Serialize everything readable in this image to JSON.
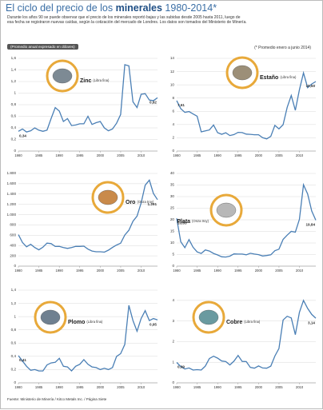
{
  "header": {
    "title_prefix": "El ciclo del precio de los ",
    "title_bold": "minerales",
    "title_suffix": " 1980-2014*",
    "description": "Durante los años 90 se puede observar que el precio de los minerales reportó bajas y las subidas desde 2005 hasta 2011, luego de esa fecha se registraron nuevas caídas, según la cotización del mercado de Londres. Los datos son tomados del Ministerio de Minería.",
    "note_left": "(Promedio anual expresado en dólares)",
    "note_right": "(* Promedio enero a junio 2014)"
  },
  "source": "Fuente: Ministerio de Minería / Kitco Metals Inc. / Página Siete",
  "chart_data": [
    {
      "type": "line",
      "name": "Zinc",
      "unit": "(Libra fina)",
      "color": "#4a7fb5",
      "x": [
        1980,
        1981,
        1982,
        1983,
        1984,
        1985,
        1986,
        1987,
        1988,
        1989,
        1990,
        1991,
        1992,
        1993,
        1994,
        1995,
        1996,
        1997,
        1998,
        1999,
        2000,
        2001,
        2002,
        2003,
        2004,
        2005,
        2006,
        2007,
        2008,
        2009,
        2010,
        2011,
        2012,
        2013,
        2014
      ],
      "values": [
        0.34,
        0.38,
        0.33,
        0.35,
        0.4,
        0.36,
        0.34,
        0.36,
        0.56,
        0.75,
        0.69,
        0.51,
        0.56,
        0.44,
        0.45,
        0.47,
        0.47,
        0.6,
        0.46,
        0.49,
        0.51,
        0.4,
        0.35,
        0.38,
        0.48,
        0.63,
        1.49,
        1.47,
        0.85,
        0.75,
        0.98,
        0.99,
        0.88,
        0.87,
        0.92
      ],
      "value_labels": [
        "0,34",
        null,
        null,
        null,
        null,
        null,
        null,
        null,
        null,
        null,
        null,
        null,
        null,
        null,
        null,
        null,
        null,
        null,
        null,
        null,
        null,
        null,
        null,
        null,
        null,
        null,
        null,
        null,
        null,
        null,
        null,
        null,
        null,
        null,
        "0,92"
      ],
      "xlim": [
        1980,
        2014
      ],
      "xticks": [
        1980,
        1985,
        1990,
        1995,
        2000,
        2005,
        2010
      ],
      "ylim": [
        0,
        1.6
      ],
      "yticks": [
        0,
        {
          "value": 0.2,
          "label": "0,2"
        },
        {
          "value": 0.4,
          "label": "0,4"
        },
        {
          "value": 0.6,
          "label": "0,6"
        },
        {
          "value": 0.8,
          "label": "0,8"
        },
        1,
        {
          "value": 1.2,
          "label": "1,2"
        },
        {
          "value": 1.4,
          "label": "1,4"
        },
        {
          "value": 1.6,
          "label": "1,6"
        }
      ],
      "grid": true
    },
    {
      "type": "line",
      "name": "Estaño",
      "unit": "(Libra fina)",
      "color": "#4a7fb5",
      "x": [
        1980,
        1981,
        1982,
        1983,
        1984,
        1985,
        1986,
        1987,
        1988,
        1989,
        1990,
        1991,
        1992,
        1993,
        1994,
        1995,
        1996,
        1997,
        1998,
        1999,
        2000,
        2001,
        2002,
        2003,
        2004,
        2005,
        2006,
        2007,
        2008,
        2009,
        2010,
        2011,
        2012,
        2013,
        2014
      ],
      "values": [
        7.61,
        6.4,
        5.84,
        5.96,
        5.6,
        5.26,
        2.9,
        3.04,
        3.19,
        3.93,
        2.77,
        2.53,
        2.76,
        2.34,
        2.49,
        2.82,
        2.79,
        2.56,
        2.52,
        2.46,
        2.46,
        2.02,
        1.84,
        2.22,
        3.87,
        3.35,
        3.98,
        6.6,
        8.39,
        6.15,
        9.26,
        11.8,
        9.57,
        10.12,
        10.5
      ],
      "value_labels": [
        "7,61",
        null,
        null,
        null,
        null,
        null,
        null,
        null,
        null,
        null,
        null,
        null,
        null,
        null,
        null,
        null,
        null,
        null,
        null,
        null,
        null,
        null,
        null,
        null,
        null,
        null,
        null,
        null,
        null,
        null,
        null,
        null,
        null,
        null,
        "10,50"
      ],
      "xlim": [
        1980,
        2014
      ],
      "xticks": [
        1980,
        1985,
        1990,
        1995,
        2000,
        2005,
        2010
      ],
      "ylim": [
        0,
        14
      ],
      "yticks": [
        0,
        2,
        4,
        6,
        8,
        10,
        12,
        14
      ],
      "grid": true
    },
    {
      "type": "line",
      "name": "Oro",
      "unit": "(Onza troy)",
      "color": "#4a7fb5",
      "x": [
        1980,
        1981,
        1982,
        1983,
        1984,
        1985,
        1986,
        1987,
        1988,
        1989,
        1990,
        1991,
        1992,
        1993,
        1994,
        1995,
        1996,
        1997,
        1998,
        1999,
        2000,
        2001,
        2002,
        2003,
        2004,
        2005,
        2006,
        2007,
        2008,
        2009,
        2010,
        2011,
        2012,
        2013,
        2014
      ],
      "values": [
        612,
        460,
        376,
        424,
        361,
        317,
        368,
        447,
        437,
        381,
        383,
        362,
        344,
        360,
        384,
        384,
        388,
        331,
        294,
        279,
        279,
        271,
        310,
        363,
        409,
        445,
        604,
        697,
        872,
        972,
        1225,
        1572,
        1669,
        1411,
        1291
      ],
      "value_labels": [
        null,
        null,
        null,
        null,
        null,
        null,
        null,
        null,
        null,
        null,
        null,
        null,
        null,
        null,
        null,
        null,
        null,
        null,
        null,
        null,
        null,
        null,
        null,
        null,
        null,
        null,
        null,
        null,
        null,
        null,
        null,
        null,
        null,
        null,
        "1.291"
      ],
      "xlim": [
        1980,
        2014
      ],
      "xticks": [
        1980,
        1985,
        1990,
        1995,
        2000,
        2005,
        2010
      ],
      "ylim": [
        0,
        1800
      ],
      "yticks": [
        0,
        200,
        400,
        600,
        800,
        {
          "value": 1000,
          "label": "1.000"
        },
        {
          "value": 1200,
          "label": "1.200"
        },
        {
          "value": 1400,
          "label": "1.400"
        },
        {
          "value": 1600,
          "label": "1.600"
        },
        {
          "value": 1800,
          "label": "1.800"
        }
      ],
      "grid": true
    },
    {
      "type": "line",
      "name": "Plata",
      "unit": "(Onza troy)",
      "color": "#4a7fb5",
      "x": [
        1980,
        1981,
        1982,
        1983,
        1984,
        1985,
        1986,
        1987,
        1988,
        1989,
        1990,
        1991,
        1992,
        1993,
        1994,
        1995,
        1996,
        1997,
        1998,
        1999,
        2000,
        2001,
        2002,
        2003,
        2004,
        2005,
        2006,
        2007,
        2008,
        2009,
        2010,
        2011,
        2012,
        2013,
        2014
      ],
      "values": [
        20.63,
        10.52,
        7.95,
        11.44,
        8.14,
        6.14,
        5.47,
        7.01,
        6.53,
        5.5,
        4.82,
        4.04,
        3.94,
        4.3,
        5.29,
        5.2,
        5.2,
        4.9,
        5.54,
        5.22,
        4.95,
        4.37,
        4.6,
        4.88,
        6.67,
        7.32,
        11.55,
        13.38,
        15.0,
        14.67,
        20.19,
        35.12,
        31.15,
        23.79,
        19.84
      ],
      "value_labels": [
        "20,63",
        null,
        null,
        null,
        null,
        null,
        null,
        null,
        null,
        null,
        null,
        null,
        null,
        null,
        null,
        null,
        null,
        null,
        null,
        null,
        null,
        null,
        null,
        null,
        null,
        null,
        null,
        null,
        null,
        null,
        null,
        null,
        null,
        null,
        "19,84"
      ],
      "xlim": [
        1980,
        2014
      ],
      "xticks": [
        1980,
        1985,
        1990,
        1995,
        2000,
        2005,
        2010
      ],
      "ylim": [
        0,
        40
      ],
      "yticks": [
        0,
        5,
        10,
        15,
        20,
        25,
        30,
        35,
        40
      ],
      "grid": true
    },
    {
      "type": "line",
      "name": "Plomo",
      "unit": "(Libra fina)",
      "color": "#4a7fb5",
      "x": [
        1980,
        1981,
        1982,
        1983,
        1984,
        1985,
        1986,
        1987,
        1988,
        1989,
        1990,
        1991,
        1992,
        1993,
        1994,
        1995,
        1996,
        1997,
        1998,
        1999,
        2000,
        2001,
        2002,
        2003,
        2004,
        2005,
        2006,
        2007,
        2008,
        2009,
        2010,
        2011,
        2012,
        2013,
        2014
      ],
      "values": [
        0.41,
        0.33,
        0.25,
        0.19,
        0.2,
        0.18,
        0.18,
        0.27,
        0.3,
        0.31,
        0.37,
        0.25,
        0.24,
        0.18,
        0.25,
        0.28,
        0.35,
        0.28,
        0.24,
        0.23,
        0.2,
        0.22,
        0.2,
        0.23,
        0.4,
        0.44,
        0.58,
        1.17,
        0.94,
        0.78,
        0.97,
        1.09,
        0.94,
        0.97,
        0.95
      ],
      "value_labels": [
        "0,41",
        null,
        null,
        null,
        null,
        null,
        null,
        null,
        null,
        null,
        null,
        null,
        null,
        null,
        null,
        null,
        null,
        null,
        null,
        null,
        null,
        null,
        null,
        null,
        null,
        null,
        null,
        null,
        null,
        null,
        null,
        null,
        null,
        null,
        "0,95"
      ],
      "xlim": [
        1980,
        2014
      ],
      "xticks": [
        1980,
        1985,
        1990,
        1995,
        2000,
        2005,
        2010
      ],
      "ylim": [
        0,
        1.4
      ],
      "yticks": [
        0,
        {
          "value": 0.2,
          "label": "0,2"
        },
        {
          "value": 0.4,
          "label": "0,4"
        },
        {
          "value": 0.6,
          "label": "0,6"
        },
        {
          "value": 0.8,
          "label": "0,8"
        },
        1,
        {
          "value": 1.2,
          "label": "1,2"
        },
        {
          "value": 1.4,
          "label": "1,4"
        }
      ],
      "grid": true
    },
    {
      "type": "line",
      "name": "Cobre",
      "unit": "(Libra fina)",
      "color": "#4a7fb5",
      "x": [
        1980,
        1981,
        1982,
        1983,
        1984,
        1985,
        1986,
        1987,
        1988,
        1989,
        1990,
        1991,
        1992,
        1993,
        1994,
        1995,
        1996,
        1997,
        1998,
        1999,
        2000,
        2001,
        2002,
        2003,
        2004,
        2005,
        2006,
        2007,
        2008,
        2009,
        2010,
        2011,
        2012,
        2013,
        2014
      ],
      "values": [
        0.99,
        0.79,
        0.67,
        0.72,
        0.62,
        0.64,
        0.62,
        0.81,
        1.18,
        1.29,
        1.2,
        1.06,
        1.03,
        0.87,
        1.05,
        1.33,
        1.04,
        1.03,
        0.75,
        0.71,
        0.82,
        0.72,
        0.71,
        0.81,
        1.3,
        1.67,
        3.05,
        3.23,
        3.15,
        2.34,
        3.42,
        4.0,
        3.61,
        3.32,
        3.14
      ],
      "value_labels": [
        "0,99",
        null,
        null,
        null,
        null,
        null,
        null,
        null,
        null,
        null,
        null,
        null,
        null,
        null,
        null,
        null,
        null,
        null,
        null,
        null,
        null,
        null,
        null,
        null,
        null,
        null,
        null,
        null,
        null,
        null,
        null,
        null,
        null,
        null,
        "3,14"
      ],
      "xlim": [
        1980,
        2014
      ],
      "xticks": [
        1980,
        1985,
        1990,
        1995,
        2000,
        2005,
        2010
      ],
      "ylim": [
        0,
        4.5
      ],
      "yticks": [
        0,
        1,
        2,
        3,
        4
      ],
      "grid": true
    }
  ]
}
